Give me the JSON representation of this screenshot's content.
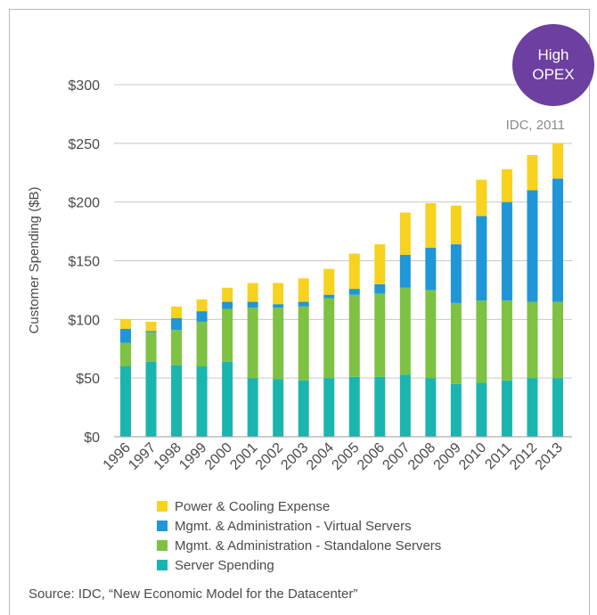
{
  "badge": {
    "line1": "High",
    "line2": "OPEX",
    "color": "#6c3fa0"
  },
  "note": "IDC, 2011",
  "source": "Source: IDC, “New Economic Model for the Datacenter”",
  "chart_data": {
    "type": "bar",
    "stacked": true,
    "ylabel": "Customer Spending ($B)",
    "xlabel": "",
    "ylim": [
      0,
      300
    ],
    "yticks": [
      "$0",
      "$50",
      "$100",
      "$150",
      "$200",
      "$250",
      "$300"
    ],
    "ytick_values": [
      0,
      50,
      100,
      150,
      200,
      250,
      300
    ],
    "grid": "horizontal",
    "legend_position": "bottom",
    "categories": [
      "1996",
      "1997",
      "1998",
      "1999",
      "2000",
      "2001",
      "2002",
      "2003",
      "2004",
      "2005",
      "2006",
      "2007",
      "2008",
      "2009",
      "2010",
      "2011",
      "2012",
      "2013"
    ],
    "series": [
      {
        "name": "Server Spending",
        "color": "#1bb5b0",
        "values": [
          60,
          64,
          61,
          60,
          64,
          50,
          49,
          48,
          50,
          51,
          51,
          53,
          50,
          45,
          46,
          48,
          50,
          50
        ]
      },
      {
        "name": "Mgmt. & Administration - Standalone Servers",
        "color": "#7dc242",
        "values": [
          20,
          25,
          30,
          38,
          45,
          60,
          61,
          63,
          68,
          70,
          71,
          74,
          75,
          69,
          70,
          68,
          65,
          65
        ]
      },
      {
        "name": "Mgmt. & Administration - Virtual Servers",
        "color": "#1f96d8",
        "values": [
          12,
          1,
          10,
          9,
          6,
          5,
          3,
          4,
          3,
          5,
          8,
          28,
          36,
          50,
          72,
          84,
          95,
          105
        ]
      },
      {
        "name": "Power & Cooling Expense",
        "color": "#f7d21e",
        "values": [
          8,
          8,
          10,
          10,
          12,
          16,
          18,
          20,
          22,
          30,
          34,
          36,
          38,
          33,
          31,
          28,
          30,
          30
        ]
      }
    ],
    "legend_order": [
      3,
      2,
      1,
      0
    ]
  }
}
